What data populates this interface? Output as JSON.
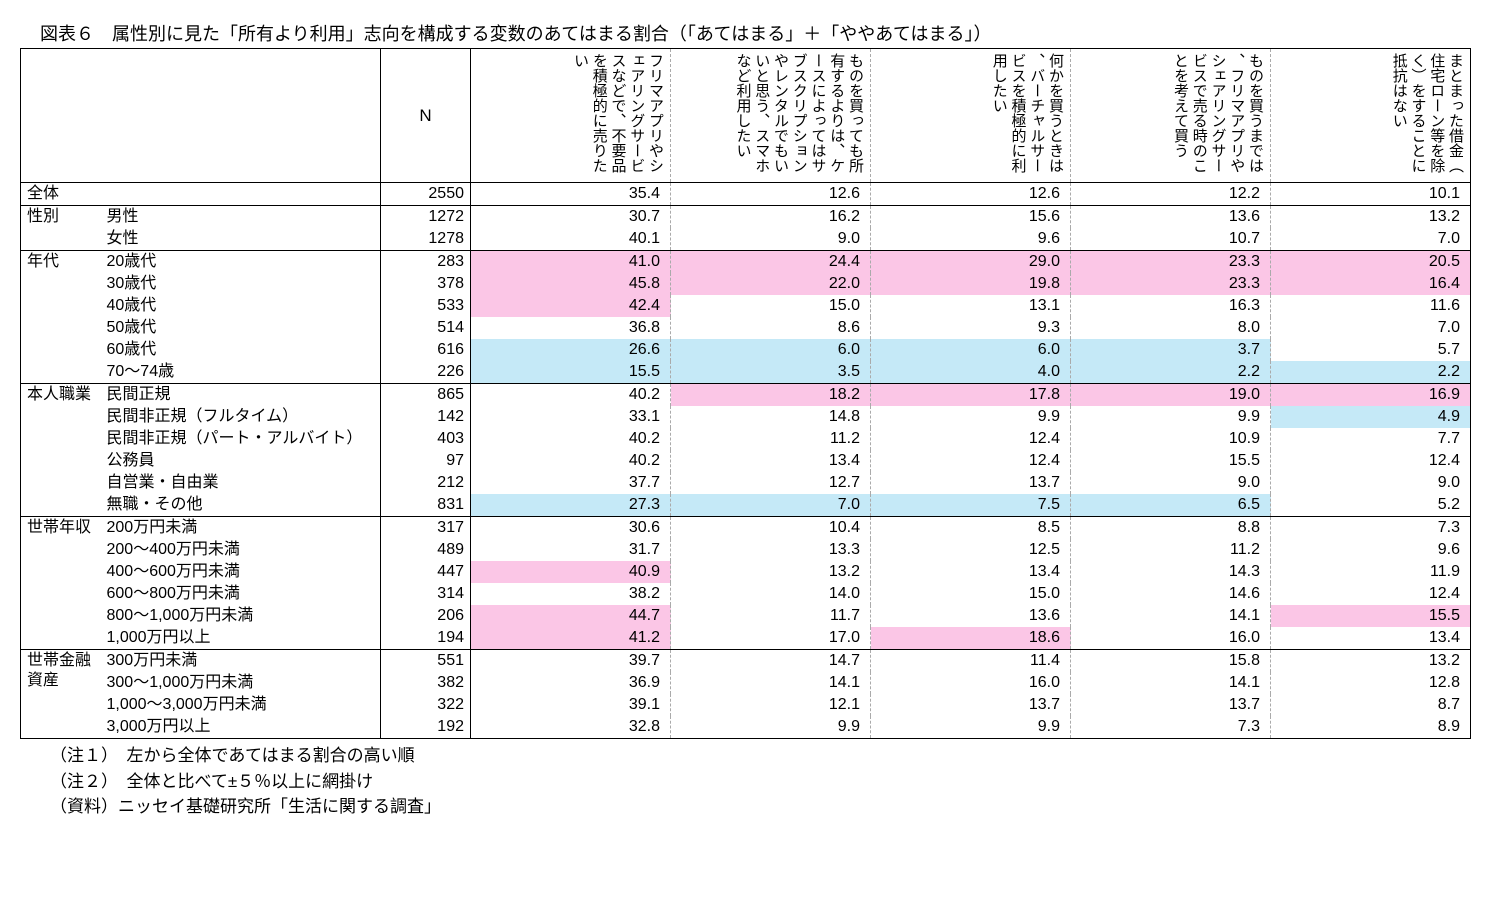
{
  "title": "図表６　属性別に見た「所有より利用」志向を構成する変数のあてはまる割合（「あてはまる」＋「ややあてはまる」）",
  "columns": {
    "n_label": "N",
    "headers": [
      "フリマアプリやシェアリングサービスなどで、不要品を積極的に売りたい",
      "ものを買っても所有するよりは、ケースによってはサブスクリプションやレンタルでもいいと思う、スマホなど利用したい",
      "何かを買うときは、バーチャルサービスを積極的に利用したい",
      "ものを買うまでは、フリマアプリやシェアリングサービスで売る時のことを考えて買う",
      "まとまった借金（住宅ローン等を除く）をすることに抵抗はない"
    ]
  },
  "groups": [
    {
      "category": "全体",
      "rows": [
        {
          "label": "",
          "n": 2550,
          "v": [
            "35.4",
            "12.6",
            "12.6",
            "12.2",
            "10.1"
          ],
          "hl": [
            "",
            "",
            "",
            "",
            ""
          ]
        }
      ]
    },
    {
      "category": "性別",
      "rows": [
        {
          "label": "男性",
          "n": 1272,
          "v": [
            "30.7",
            "16.2",
            "15.6",
            "13.6",
            "13.2"
          ],
          "hl": [
            "",
            "",
            "",
            "",
            ""
          ]
        },
        {
          "label": "女性",
          "n": 1278,
          "v": [
            "40.1",
            "9.0",
            "9.6",
            "10.7",
            "7.0"
          ],
          "hl": [
            "",
            "",
            "",
            "",
            ""
          ]
        }
      ]
    },
    {
      "category": "年代",
      "rows": [
        {
          "label": "20歳代",
          "n": 283,
          "v": [
            "41.0",
            "24.4",
            "29.0",
            "23.3",
            "20.5"
          ],
          "hl": [
            "p",
            "p",
            "p",
            "p",
            "p"
          ]
        },
        {
          "label": "30歳代",
          "n": 378,
          "v": [
            "45.8",
            "22.0",
            "19.8",
            "23.3",
            "16.4"
          ],
          "hl": [
            "p",
            "p",
            "p",
            "p",
            "p"
          ]
        },
        {
          "label": "40歳代",
          "n": 533,
          "v": [
            "42.4",
            "15.0",
            "13.1",
            "16.3",
            "11.6"
          ],
          "hl": [
            "p",
            "",
            "",
            "",
            ""
          ]
        },
        {
          "label": "50歳代",
          "n": 514,
          "v": [
            "36.8",
            "8.6",
            "9.3",
            "8.0",
            "7.0"
          ],
          "hl": [
            "",
            "",
            "",
            "",
            ""
          ]
        },
        {
          "label": "60歳代",
          "n": 616,
          "v": [
            "26.6",
            "6.0",
            "6.0",
            "3.7",
            "5.7"
          ],
          "hl": [
            "b",
            "b",
            "b",
            "b",
            ""
          ]
        },
        {
          "label": "70～74歳",
          "n": 226,
          "v": [
            "15.5",
            "3.5",
            "4.0",
            "2.2",
            "2.2"
          ],
          "hl": [
            "b",
            "b",
            "b",
            "b",
            "b"
          ]
        }
      ]
    },
    {
      "category": "本人職業",
      "rows": [
        {
          "label": "民間正規",
          "n": 865,
          "v": [
            "40.2",
            "18.2",
            "17.8",
            "19.0",
            "16.9"
          ],
          "hl": [
            "",
            "p",
            "p",
            "p",
            "p"
          ]
        },
        {
          "label": "民間非正規（フルタイム）",
          "n": 142,
          "v": [
            "33.1",
            "14.8",
            "9.9",
            "9.9",
            "4.9"
          ],
          "hl": [
            "",
            "",
            "",
            "",
            "b"
          ]
        },
        {
          "label": "民間非正規（パート・アルバイト）",
          "n": 403,
          "v": [
            "40.2",
            "11.2",
            "12.4",
            "10.9",
            "7.7"
          ],
          "hl": [
            "",
            "",
            "",
            "",
            ""
          ]
        },
        {
          "label": "公務員",
          "n": 97,
          "v": [
            "40.2",
            "13.4",
            "12.4",
            "15.5",
            "12.4"
          ],
          "hl": [
            "",
            "",
            "",
            "",
            ""
          ]
        },
        {
          "label": "自営業・自由業",
          "n": 212,
          "v": [
            "37.7",
            "12.7",
            "13.7",
            "9.0",
            "9.0"
          ],
          "hl": [
            "",
            "",
            "",
            "",
            ""
          ]
        },
        {
          "label": "無職・その他",
          "n": 831,
          "v": [
            "27.3",
            "7.0",
            "7.5",
            "6.5",
            "5.2"
          ],
          "hl": [
            "b",
            "b",
            "b",
            "b",
            ""
          ]
        }
      ]
    },
    {
      "category": "世帯年収",
      "rows": [
        {
          "label": "200万円未満",
          "n": 317,
          "v": [
            "30.6",
            "10.4",
            "8.5",
            "8.8",
            "7.3"
          ],
          "hl": [
            "",
            "",
            "",
            "",
            ""
          ]
        },
        {
          "label": "200～400万円未満",
          "n": 489,
          "v": [
            "31.7",
            "13.3",
            "12.5",
            "11.2",
            "9.6"
          ],
          "hl": [
            "",
            "",
            "",
            "",
            ""
          ]
        },
        {
          "label": "400～600万円未満",
          "n": 447,
          "v": [
            "40.9",
            "13.2",
            "13.4",
            "14.3",
            "11.9"
          ],
          "hl": [
            "p",
            "",
            "",
            "",
            ""
          ]
        },
        {
          "label": "600～800万円未満",
          "n": 314,
          "v": [
            "38.2",
            "14.0",
            "15.0",
            "14.6",
            "12.4"
          ],
          "hl": [
            "",
            "",
            "",
            "",
            ""
          ]
        },
        {
          "label": "800～1,000万円未満",
          "n": 206,
          "v": [
            "44.7",
            "11.7",
            "13.6",
            "14.1",
            "15.5"
          ],
          "hl": [
            "p",
            "",
            "",
            "",
            "p"
          ]
        },
        {
          "label": "1,000万円以上",
          "n": 194,
          "v": [
            "41.2",
            "17.0",
            "18.6",
            "16.0",
            "13.4"
          ],
          "hl": [
            "p",
            "",
            "p",
            "",
            ""
          ]
        }
      ]
    },
    {
      "category": "世帯金融資産",
      "rows": [
        {
          "label": "300万円未満",
          "n": 551,
          "v": [
            "39.7",
            "14.7",
            "11.4",
            "15.8",
            "13.2"
          ],
          "hl": [
            "",
            "",
            "",
            "",
            ""
          ]
        },
        {
          "label": "300～1,000万円未満",
          "n": 382,
          "v": [
            "36.9",
            "14.1",
            "16.0",
            "14.1",
            "12.8"
          ],
          "hl": [
            "",
            "",
            "",
            "",
            ""
          ]
        },
        {
          "label": "1,000～3,000万円未満",
          "n": 322,
          "v": [
            "39.1",
            "12.1",
            "13.7",
            "13.7",
            "8.7"
          ],
          "hl": [
            "",
            "",
            "",
            "",
            ""
          ]
        },
        {
          "label": "3,000万円以上",
          "n": 192,
          "v": [
            "32.8",
            "9.9",
            "9.9",
            "7.3",
            "8.9"
          ],
          "hl": [
            "",
            "",
            "",
            "",
            ""
          ]
        }
      ]
    }
  ],
  "notes": [
    "（注１）　左から全体であてはまる割合の高い順",
    "（注２）　全体と比べて±５％以上に網掛け",
    "（資料）ニッセイ基礎研究所「生活に関する調査」"
  ],
  "colors": {
    "pink": "#fbc6e6",
    "blue": "#c5e9f7"
  }
}
